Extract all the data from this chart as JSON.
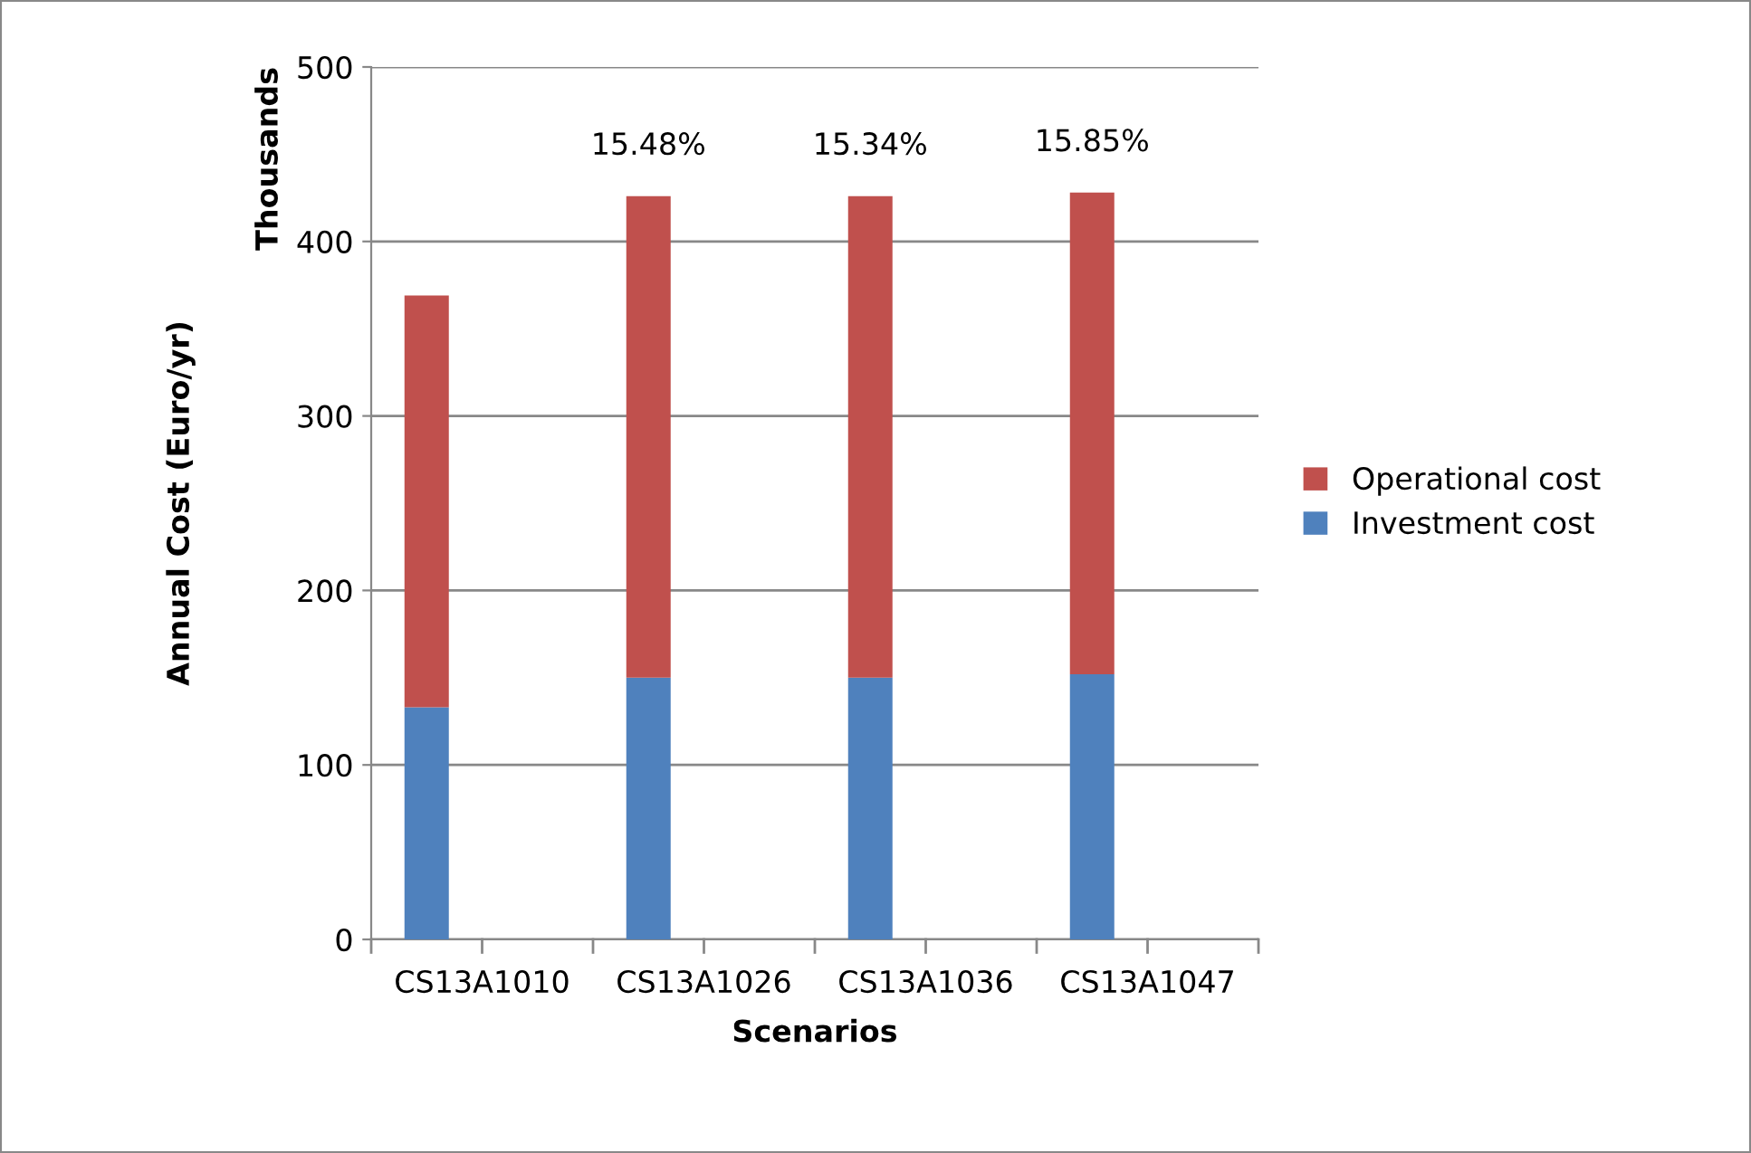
{
  "chart_data": {
    "type": "bar",
    "stacked": true,
    "ylabel": "Annual Cost (Euro/yr)",
    "xlabel": "Scenarios",
    "annotations": [
      "Thousands",
      "15.48%",
      "15.34%",
      "15.85%"
    ],
    "categories": [
      "CS13A1010",
      "CS13A1026",
      "CS13A1036",
      "CS13A1047"
    ],
    "series": [
      {
        "name": "Investment cost",
        "color": "#4f81bd",
        "values": [
          133,
          150,
          150,
          152
        ]
      },
      {
        "name": "Operational cost",
        "color": "#c0504d",
        "values": [
          236,
          276,
          276,
          276
        ]
      }
    ],
    "ylim": [
      0,
      500
    ],
    "yticks": [
      0,
      100,
      200,
      300,
      400,
      500
    ],
    "grid": "y",
    "legend": "right"
  }
}
